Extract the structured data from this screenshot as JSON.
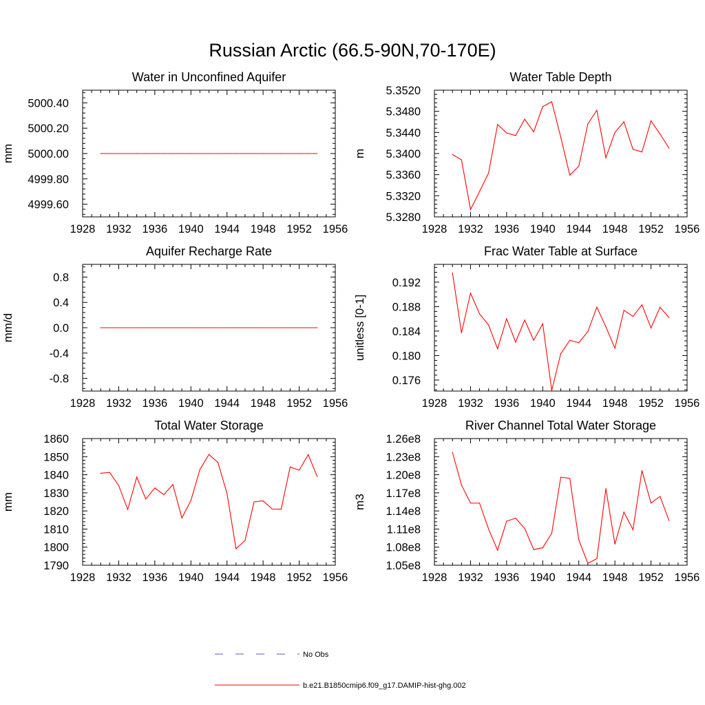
{
  "title": "Russian Arctic (66.5-90N,70-170E)",
  "legend": {
    "position": "bottom-center",
    "entries": [
      {
        "label": "No Obs",
        "color": "#5a5ab4",
        "style": "dashed"
      },
      {
        "label": "b.e21.B1850cmip6.f09_g17.DAMIP-hist-ghg.002",
        "color": "#ff0000",
        "style": "solid"
      }
    ]
  },
  "chart_data": [
    {
      "type": "line",
      "title": "Water in Unconfined Aquifer",
      "ylabel": "mm",
      "xlim": [
        1928,
        1956
      ],
      "xticks": [
        1928,
        1932,
        1936,
        1940,
        1944,
        1948,
        1952,
        1956
      ],
      "ylim": [
        4999.5,
        5000.5
      ],
      "yticks": [
        4999.6,
        4999.8,
        5000.0,
        5000.2,
        5000.4
      ],
      "ytick_labels": [
        "4999.60",
        "4999.80",
        "5000.00",
        "5000.20",
        "5000.40"
      ],
      "x": [
        1930,
        1931,
        1932,
        1933,
        1934,
        1935,
        1936,
        1937,
        1938,
        1939,
        1940,
        1941,
        1942,
        1943,
        1944,
        1945,
        1946,
        1947,
        1948,
        1949,
        1950,
        1951,
        1952,
        1953,
        1954
      ],
      "series": [
        {
          "color": "#ff0000",
          "values": [
            5000,
            5000,
            5000,
            5000,
            5000,
            5000,
            5000,
            5000,
            5000,
            5000,
            5000,
            5000,
            5000,
            5000,
            5000,
            5000,
            5000,
            5000,
            5000,
            5000,
            5000,
            5000,
            5000,
            5000,
            5000
          ]
        }
      ]
    },
    {
      "type": "line",
      "title": "Water Table Depth",
      "ylabel": "m",
      "xlim": [
        1928,
        1956
      ],
      "xticks": [
        1928,
        1932,
        1936,
        1940,
        1944,
        1948,
        1952,
        1956
      ],
      "ylim": [
        5.328,
        5.352
      ],
      "yticks": [
        5.328,
        5.332,
        5.336,
        5.34,
        5.344,
        5.348,
        5.352
      ],
      "ytick_labels": [
        "5.3280",
        "5.3320",
        "5.3360",
        "5.3400",
        "5.3440",
        "5.3480",
        "5.3520"
      ],
      "x": [
        1930,
        1931,
        1932,
        1933,
        1934,
        1935,
        1936,
        1937,
        1938,
        1939,
        1940,
        1941,
        1942,
        1943,
        1944,
        1945,
        1946,
        1947,
        1948,
        1949,
        1950,
        1951,
        1952,
        1953,
        1954
      ],
      "series": [
        {
          "color": "#ff0000",
          "values": [
            5.3398,
            5.3388,
            5.3294,
            5.3328,
            5.3363,
            5.3455,
            5.3439,
            5.3434,
            5.3465,
            5.3441,
            5.3489,
            5.3498,
            5.3431,
            5.3359,
            5.3376,
            5.3456,
            5.3482,
            5.3392,
            5.344,
            5.346,
            5.3408,
            5.3403,
            5.3462,
            5.3437,
            5.341
          ]
        }
      ]
    },
    {
      "type": "line",
      "title": "Aquifer Recharge Rate",
      "ylabel": "mm/d",
      "xlim": [
        1928,
        1956
      ],
      "xticks": [
        1928,
        1932,
        1936,
        1940,
        1944,
        1948,
        1952,
        1956
      ],
      "ylim": [
        -1.0,
        1.0
      ],
      "yticks": [
        -0.8,
        -0.4,
        0.0,
        0.4,
        0.8
      ],
      "ytick_labels": [
        "-0.8",
        "-0.4",
        "0.0",
        "0.4",
        "0.8"
      ],
      "x": [
        1930,
        1931,
        1932,
        1933,
        1934,
        1935,
        1936,
        1937,
        1938,
        1939,
        1940,
        1941,
        1942,
        1943,
        1944,
        1945,
        1946,
        1947,
        1948,
        1949,
        1950,
        1951,
        1952,
        1953,
        1954
      ],
      "series": [
        {
          "color": "#ff0000",
          "values": [
            0,
            0,
            0,
            0,
            0,
            0,
            0,
            0,
            0,
            0,
            0,
            0,
            0,
            0,
            0,
            0,
            0,
            0,
            0,
            0,
            0,
            0,
            0,
            0,
            0
          ]
        }
      ]
    },
    {
      "type": "line",
      "title": "Frac Water Table at Surface",
      "ylabel": "unitless [0-1]",
      "xlim": [
        1928,
        1956
      ],
      "xticks": [
        1928,
        1932,
        1936,
        1940,
        1944,
        1948,
        1952,
        1956
      ],
      "ylim": [
        0.1742,
        0.1949
      ],
      "yticks": [
        0.176,
        0.18,
        0.184,
        0.188,
        0.192
      ],
      "ytick_labels": [
        "0.176",
        "0.180",
        "0.184",
        "0.188",
        "0.192"
      ],
      "x": [
        1930,
        1931,
        1932,
        1933,
        1934,
        1935,
        1936,
        1937,
        1938,
        1939,
        1940,
        1941,
        1942,
        1943,
        1944,
        1945,
        1946,
        1947,
        1948,
        1949,
        1950,
        1951,
        1952,
        1953,
        1954
      ],
      "series": [
        {
          "color": "#ff0000",
          "values": [
            0.1935,
            0.1837,
            0.1902,
            0.1868,
            0.185,
            0.1811,
            0.186,
            0.1822,
            0.1858,
            0.1825,
            0.1852,
            0.1743,
            0.1803,
            0.1825,
            0.1821,
            0.1839,
            0.1879,
            0.1847,
            0.1812,
            0.1874,
            0.1864,
            0.1883,
            0.1845,
            0.1879,
            0.1862
          ]
        }
      ]
    },
    {
      "type": "line",
      "title": "Total Water Storage",
      "ylabel": "mm",
      "xlim": [
        1928,
        1956
      ],
      "xticks": [
        1928,
        1932,
        1936,
        1940,
        1944,
        1948,
        1952,
        1956
      ],
      "ylim": [
        1790,
        1860
      ],
      "yticks": [
        1790,
        1800,
        1810,
        1820,
        1830,
        1840,
        1850,
        1860
      ],
      "ytick_labels": [
        "1790",
        "1800",
        "1810",
        "1820",
        "1830",
        "1840",
        "1850",
        "1860"
      ],
      "x": [
        1930,
        1931,
        1932,
        1933,
        1934,
        1935,
        1936,
        1937,
        1938,
        1939,
        1940,
        1941,
        1942,
        1943,
        1944,
        1945,
        1946,
        1947,
        1948,
        1949,
        1950,
        1951,
        1952,
        1953,
        1954
      ],
      "series": [
        {
          "color": "#ff0000",
          "values": [
            1840.8,
            1841.3,
            1834,
            1820.8,
            1838.7,
            1826.6,
            1832.7,
            1829,
            1834.6,
            1816.1,
            1825.8,
            1842.9,
            1851.2,
            1846.7,
            1829.7,
            1799.1,
            1803.7,
            1825,
            1825.6,
            1821.1,
            1821,
            1844.3,
            1842.5,
            1851.1,
            1839
          ]
        }
      ]
    },
    {
      "type": "line",
      "title": "River Channel Total Water Storage",
      "ylabel": "m3",
      "xlim": [
        1928,
        1956
      ],
      "xticks": [
        1928,
        1932,
        1936,
        1940,
        1944,
        1948,
        1952,
        1956
      ],
      "ylim": [
        105000000,
        126000000
      ],
      "yticks": [
        105000000,
        108000000,
        111000000,
        114000000,
        117000000,
        120000000,
        123000000,
        126000000
      ],
      "ytick_labels": [
        "1.05e8",
        "1.08e8",
        "1.11e8",
        "1.14e8",
        "1.17e8",
        "1.20e8",
        "1.23e8",
        "1.26e8"
      ],
      "x": [
        1930,
        1931,
        1932,
        1933,
        1934,
        1935,
        1936,
        1937,
        1938,
        1939,
        1940,
        1941,
        1942,
        1943,
        1944,
        1945,
        1946,
        1947,
        1948,
        1949,
        1950,
        1951,
        1952,
        1953,
        1954
      ],
      "series": [
        {
          "color": "#ff0000",
          "values": [
            123700000,
            118300000,
            115300000,
            115300000,
            111000000,
            107500000,
            112300000,
            112800000,
            111100000,
            107600000,
            107900000,
            110300000,
            119600000,
            119400000,
            109200000,
            105300000,
            106100000,
            117700000,
            108500000,
            113800000,
            110900000,
            120700000,
            115300000,
            116400000,
            112400000
          ]
        }
      ]
    }
  ]
}
